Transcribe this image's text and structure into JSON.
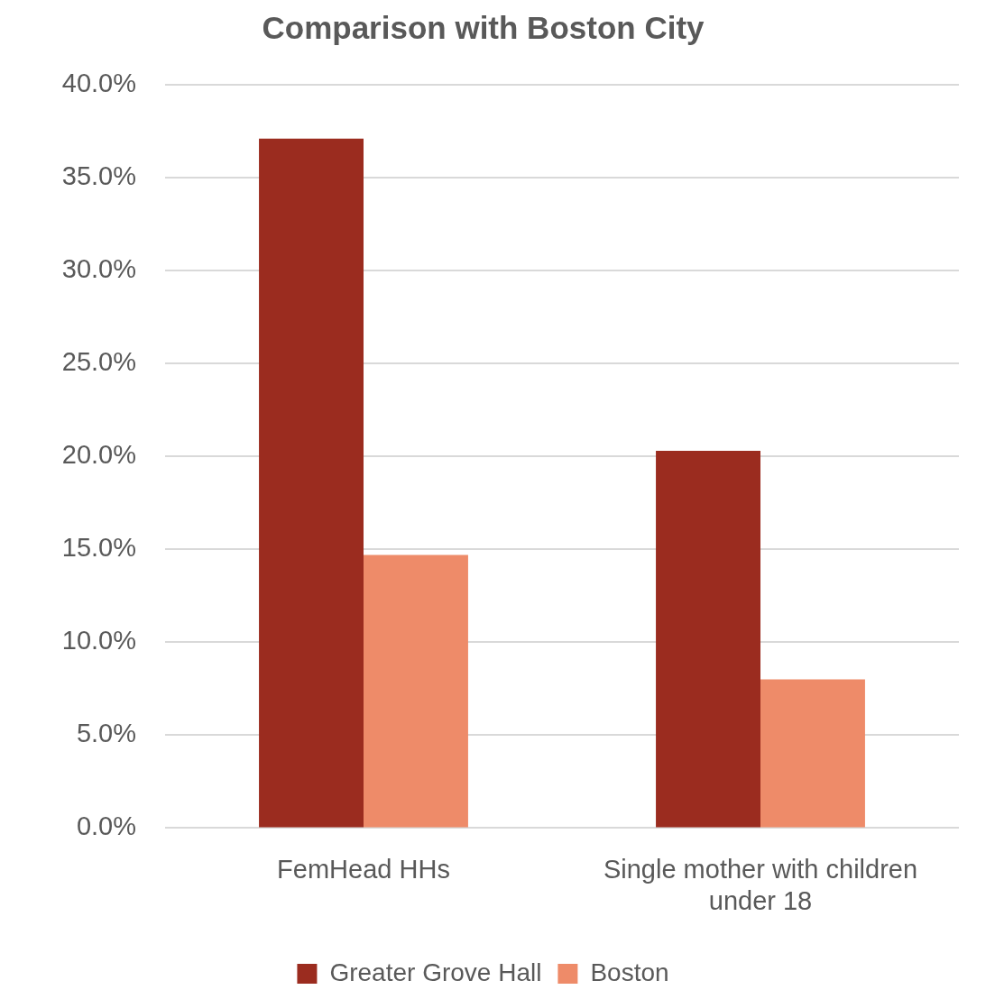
{
  "chart_data": {
    "type": "bar",
    "title": "Comparison with Boston City",
    "categories": [
      "FemHead HHs",
      "Single mother with children under 18"
    ],
    "series": [
      {
        "name": "Greater Grove Hall",
        "color": "#9b2c1f",
        "values": [
          37.1,
          20.3
        ]
      },
      {
        "name": "Boston",
        "color": "#ee8b69",
        "values": [
          14.7,
          8.0
        ]
      }
    ],
    "ylim": [
      0,
      40
    ],
    "yticks": [
      {
        "value": 0,
        "label": "0.0%"
      },
      {
        "value": 5,
        "label": "5.0%"
      },
      {
        "value": 10,
        "label": "10.0%"
      },
      {
        "value": 15,
        "label": "15.0%"
      },
      {
        "value": 20,
        "label": "20.0%"
      },
      {
        "value": 25,
        "label": "25.0%"
      },
      {
        "value": 30,
        "label": "30.0%"
      },
      {
        "value": 35,
        "label": "35.0%"
      },
      {
        "value": 40,
        "label": "40.0%"
      }
    ],
    "grid": "y",
    "legend": "bottom"
  }
}
